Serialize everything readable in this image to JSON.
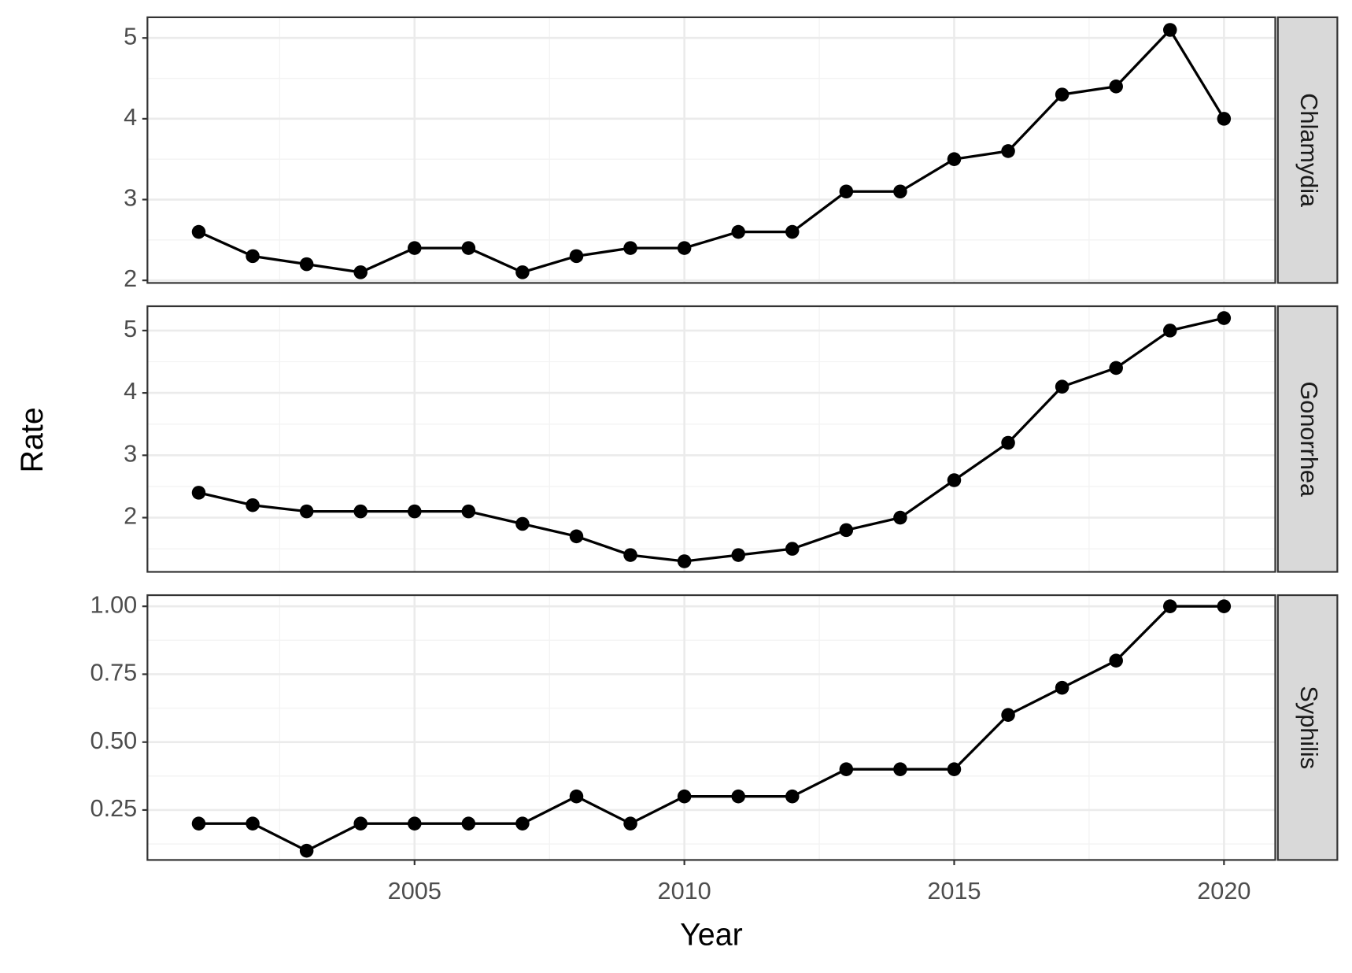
{
  "x_label": "Year",
  "y_label": "Rate",
  "chart_data": [
    {
      "type": "line",
      "facet": "Chlamydia",
      "color": "#000000",
      "grid": true,
      "x": [
        2001,
        2002,
        2003,
        2004,
        2005,
        2006,
        2007,
        2008,
        2009,
        2010,
        2011,
        2012,
        2013,
        2014,
        2015,
        2016,
        2017,
        2018,
        2019,
        2020
      ],
      "values": [
        2.6,
        2.3,
        2.2,
        2.1,
        2.4,
        2.4,
        2.1,
        2.3,
        2.4,
        2.4,
        2.6,
        2.6,
        3.1,
        3.1,
        3.5,
        3.6,
        4.3,
        4.4,
        5.1,
        4.0
      ],
      "xlim": [
        2000.05,
        2020.95
      ],
      "xticks": [
        2005,
        2010,
        2015,
        2020
      ],
      "ylim": [
        1.968,
        5.256
      ],
      "yticks": [
        2,
        3,
        4,
        5
      ]
    },
    {
      "type": "line",
      "facet": "Gonorrhea",
      "color": "#000000",
      "grid": true,
      "x": [
        2001,
        2002,
        2003,
        2004,
        2005,
        2006,
        2007,
        2008,
        2009,
        2010,
        2011,
        2012,
        2013,
        2014,
        2015,
        2016,
        2017,
        2018,
        2019,
        2020
      ],
      "values": [
        2.4,
        2.2,
        2.1,
        2.1,
        2.1,
        2.1,
        1.9,
        1.7,
        1.4,
        1.3,
        1.4,
        1.5,
        1.8,
        2.0,
        2.6,
        3.2,
        4.1,
        4.4,
        5.0,
        5.2
      ],
      "xlim": [
        2000.05,
        2020.95
      ],
      "xticks": [
        2005,
        2010,
        2015,
        2020
      ],
      "ylim": [
        1.13,
        5.39
      ],
      "yticks": [
        2,
        3,
        4,
        5
      ]
    },
    {
      "type": "line",
      "facet": "Syphilis",
      "color": "#000000",
      "grid": true,
      "x": [
        2001,
        2002,
        2003,
        2004,
        2005,
        2006,
        2007,
        2008,
        2009,
        2010,
        2011,
        2012,
        2013,
        2014,
        2015,
        2016,
        2017,
        2018,
        2019,
        2020
      ],
      "values": [
        0.2,
        0.2,
        0.1,
        0.2,
        0.2,
        0.2,
        0.2,
        0.3,
        0.2,
        0.3,
        0.3,
        0.3,
        0.4,
        0.4,
        0.4,
        0.6,
        0.7,
        0.8,
        1.0,
        1.0
      ],
      "xlim": [
        2000.05,
        2020.95
      ],
      "xticks": [
        2005,
        2010,
        2015,
        2020
      ],
      "ylim": [
        0.066,
        1.041
      ],
      "yticks": [
        {
          "value": 0.25,
          "label": "0.25"
        },
        {
          "value": 0.5,
          "label": "0.50"
        },
        {
          "value": 0.75,
          "label": "0.75"
        },
        {
          "value": 1,
          "label": "1.00"
        }
      ]
    }
  ]
}
